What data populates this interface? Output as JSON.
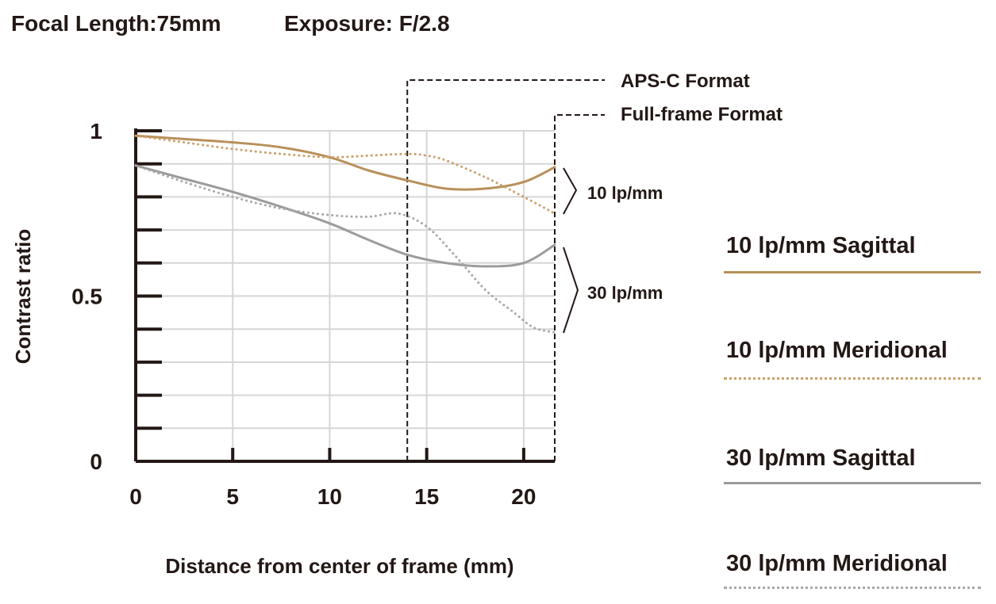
{
  "header": {
    "focal_length": "Focal Length:75mm",
    "exposure": "Exposure: F/2.8"
  },
  "formats": {
    "apsc": "APS-C Format",
    "fullframe": "Full-frame Format"
  },
  "groups": {
    "g10": "10 lp/mm",
    "g30": "30 lp/mm"
  },
  "legend": [
    {
      "label": "10 lp/mm Sagittal",
      "color": "#b8905a",
      "style": "solid"
    },
    {
      "label": "10 lp/mm Meridional",
      "color": "#c9a06a",
      "style": "dotted"
    },
    {
      "label": "30 lp/mm Sagittal",
      "color": "#9b9b9b",
      "style": "solid"
    },
    {
      "label": "30 lp/mm Meridional",
      "color": "#a8a8a8",
      "style": "dotted"
    }
  ],
  "chart_data": {
    "type": "line",
    "xlabel": "Distance from center of frame (mm)",
    "ylabel": "Contrast ratio",
    "xlim": [
      0,
      21.6
    ],
    "ylim": [
      0,
      1
    ],
    "xticks": [
      0,
      5,
      10,
      15,
      20
    ],
    "yticks": [
      0,
      0.5,
      1
    ],
    "yticklabels": [
      "0",
      "0.5",
      "1"
    ],
    "grid": true,
    "aps_c_limit": 14,
    "full_frame_limit": 21.6,
    "series": [
      {
        "name": "10 lp/mm Sagittal",
        "style": "solid",
        "color": "#b8905a",
        "x": [
          0,
          2.5,
          5,
          7.5,
          10,
          12,
          14,
          16,
          18,
          20,
          21.6
        ],
        "y": [
          0.985,
          0.975,
          0.965,
          0.95,
          0.92,
          0.88,
          0.85,
          0.825,
          0.825,
          0.845,
          0.89
        ]
      },
      {
        "name": "10 lp/mm Meridional",
        "style": "dotted",
        "color": "#c9a06a",
        "x": [
          0,
          2.5,
          5,
          7.5,
          10,
          12,
          14,
          15,
          16,
          18,
          20,
          21.6
        ],
        "y": [
          0.985,
          0.965,
          0.945,
          0.93,
          0.92,
          0.925,
          0.93,
          0.925,
          0.91,
          0.86,
          0.8,
          0.75
        ]
      },
      {
        "name": "30 lp/mm Sagittal",
        "style": "solid",
        "color": "#9b9b9b",
        "x": [
          0,
          2.5,
          5,
          7.5,
          10,
          12,
          14,
          16,
          18,
          20,
          21.6
        ],
        "y": [
          0.895,
          0.855,
          0.815,
          0.77,
          0.72,
          0.67,
          0.625,
          0.6,
          0.59,
          0.6,
          0.655
        ]
      },
      {
        "name": "30 lp/mm Meridional",
        "style": "dotted",
        "color": "#a8a8a8",
        "x": [
          0,
          2.5,
          5,
          7.5,
          10,
          12,
          13.5,
          15,
          16.5,
          18,
          19.5,
          20.5,
          21.6
        ],
        "y": [
          0.895,
          0.845,
          0.8,
          0.765,
          0.745,
          0.74,
          0.75,
          0.71,
          0.62,
          0.52,
          0.45,
          0.405,
          0.39
        ]
      }
    ]
  }
}
